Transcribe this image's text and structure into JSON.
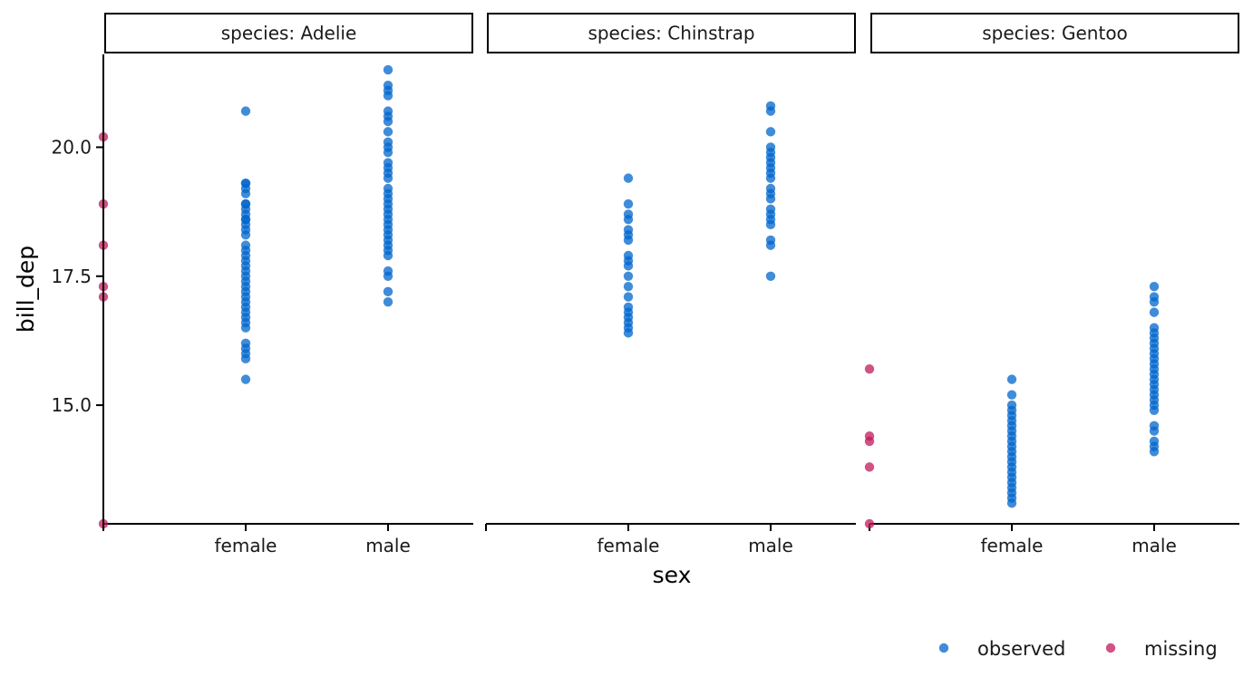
{
  "chart_data": {
    "type": "scatter",
    "xlabel": "sex",
    "ylabel": "bill_dep",
    "x_categories": [
      "female",
      "male"
    ],
    "y_ticks": [
      "15.0",
      "17.5",
      "20.0"
    ],
    "ylim": [
      12.7,
      21.8
    ],
    "facet_prefix": "species: ",
    "facets": [
      "Adelie",
      "Chinstrap",
      "Gentoo"
    ],
    "legend_position": "bottom-right",
    "series": [
      {
        "name": "observed",
        "color": "#0066CC",
        "points": {
          "Adelie": {
            "female": [
              20.7,
              19.3,
              19.3,
              19.2,
              19.1,
              18.9,
              18.9,
              18.8,
              18.7,
              18.6,
              18.6,
              18.5,
              18.4,
              18.3,
              18.1,
              18.0,
              17.9,
              17.8,
              17.7,
              17.6,
              17.5,
              17.4,
              17.3,
              17.2,
              17.1,
              17.0,
              16.9,
              16.8,
              16.7,
              16.6,
              16.5,
              16.2,
              16.1,
              16.0,
              15.9,
              15.5
            ],
            "male": [
              21.5,
              21.2,
              21.1,
              21.0,
              20.7,
              20.6,
              20.5,
              20.3,
              20.1,
              20.0,
              19.9,
              19.7,
              19.6,
              19.5,
              19.4,
              19.2,
              19.1,
              19.0,
              18.9,
              18.8,
              18.7,
              18.6,
              18.5,
              18.4,
              18.3,
              18.2,
              18.1,
              18.0,
              17.9,
              17.6,
              17.5,
              17.2,
              17.0
            ]
          },
          "Chinstrap": {
            "female": [
              19.4,
              18.9,
              18.7,
              18.6,
              18.4,
              18.3,
              18.2,
              17.9,
              17.8,
              17.7,
              17.5,
              17.3,
              17.1,
              16.9,
              16.8,
              16.7,
              16.6,
              16.5,
              16.4
            ],
            "male": [
              20.8,
              20.7,
              20.3,
              20.0,
              19.9,
              19.8,
              19.7,
              19.6,
              19.5,
              19.4,
              19.2,
              19.1,
              19.0,
              18.8,
              18.7,
              18.6,
              18.5,
              18.2,
              18.1,
              17.5
            ]
          },
          "Gentoo": {
            "female": [
              15.5,
              15.2,
              15.0,
              14.9,
              14.8,
              14.7,
              14.6,
              14.5,
              14.4,
              14.3,
              14.2,
              14.1,
              14.0,
              13.9,
              13.8,
              13.7,
              13.6,
              13.5,
              13.4,
              13.3,
              13.2,
              13.1
            ],
            "male": [
              17.3,
              17.1,
              17.0,
              16.8,
              16.5,
              16.4,
              16.3,
              16.2,
              16.1,
              16.0,
              15.9,
              15.8,
              15.7,
              15.6,
              15.5,
              15.4,
              15.3,
              15.2,
              15.1,
              15.0,
              14.9,
              14.6,
              14.5,
              14.3,
              14.2,
              14.1
            ]
          }
        }
      },
      {
        "name": "missing",
        "color": "#C2185B",
        "points": {
          "Adelie": {
            "missing": [
              20.2,
              18.9,
              18.1,
              17.3,
              17.1,
              12.7
            ]
          },
          "Chinstrap": {
            "missing": []
          },
          "Gentoo": {
            "missing": [
              15.7,
              14.4,
              14.3,
              13.8,
              12.7
            ]
          }
        }
      }
    ]
  }
}
